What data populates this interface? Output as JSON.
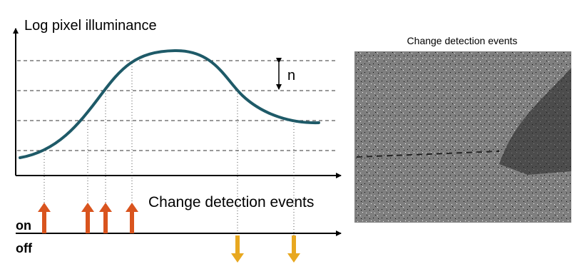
{
  "diagram": {
    "y_axis_label": "Log pixel illuminance",
    "threshold_label": "n",
    "events_label": "Change detection events",
    "on_label": "on",
    "off_label": "off"
  },
  "image": {
    "title": "Change detection events"
  }
}
